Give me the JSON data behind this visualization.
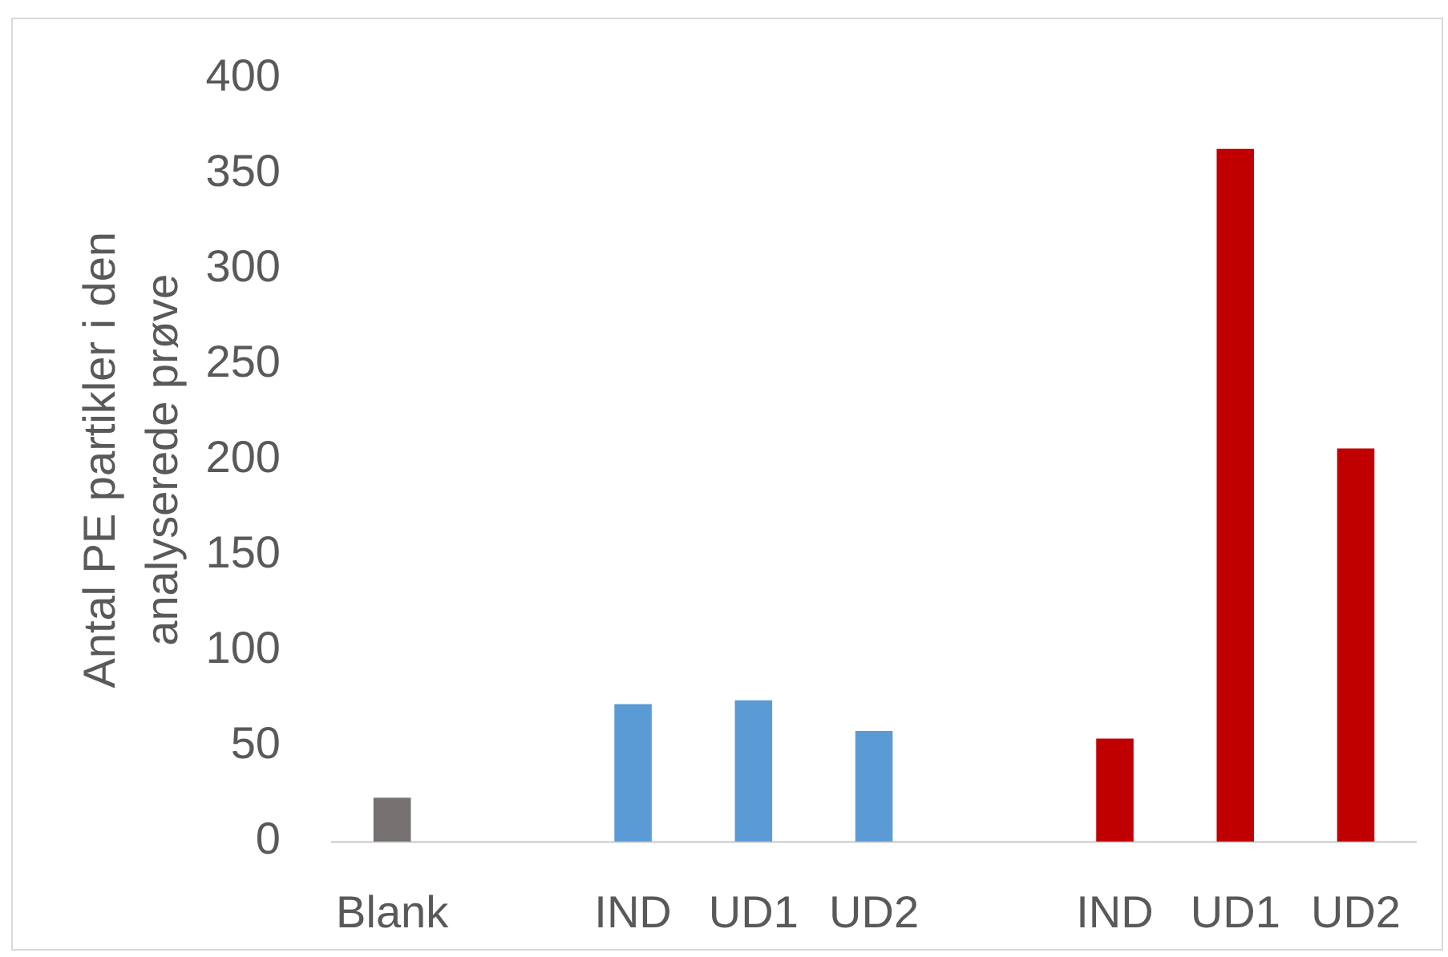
{
  "chart_data": {
    "type": "bar",
    "ylabel": "Antal PE partikler i den analyserede prøve",
    "categories": [
      "Blank",
      null,
      "IND",
      "UD1",
      "UD2",
      null,
      "IND",
      "UD1",
      "UD2"
    ],
    "values": [
      23,
      null,
      72,
      74,
      58,
      null,
      54,
      363,
      206
    ],
    "colors": [
      "#767171",
      null,
      "#5b9bd5",
      "#5b9bd5",
      "#5b9bd5",
      null,
      "#c00000",
      "#c00000",
      "#c00000"
    ],
    "ylim": [
      0,
      400
    ],
    "yticks": [
      0,
      50,
      100,
      150,
      200,
      250,
      300,
      350,
      400
    ],
    "grid": false,
    "legend": false
  }
}
